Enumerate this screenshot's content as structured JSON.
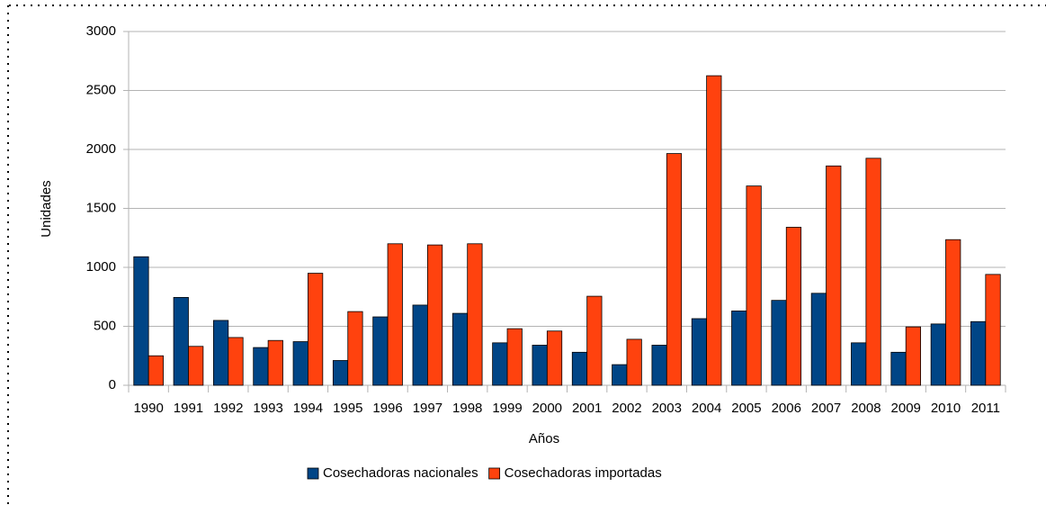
{
  "chart_data": {
    "type": "bar",
    "categories": [
      "1990",
      "1991",
      "1992",
      "1993",
      "1994",
      "1995",
      "1996",
      "1997",
      "1998",
      "1999",
      "2000",
      "2001",
      "2002",
      "2003",
      "2004",
      "2005",
      "2006",
      "2007",
      "2008",
      "2009",
      "2010",
      "2011"
    ],
    "series": [
      {
        "name": "Cosechadoras nacionales",
        "color": "#004586",
        "values": [
          1090,
          745,
          550,
          320,
          370,
          210,
          580,
          680,
          610,
          360,
          340,
          280,
          175,
          340,
          565,
          630,
          720,
          780,
          360,
          280,
          520,
          540
        ]
      },
      {
        "name": "Cosechadoras importadas",
        "color": "#ff420e",
        "values": [
          250,
          330,
          405,
          380,
          950,
          625,
          1200,
          1190,
          1200,
          480,
          460,
          755,
          390,
          1965,
          2625,
          1690,
          1340,
          1860,
          1925,
          495,
          1235,
          940
        ]
      }
    ],
    "x_label": "Años",
    "y_label": "Unidades",
    "ylim": [
      0,
      3000
    ],
    "yticks": [
      0,
      500,
      1000,
      1500,
      2000,
      2500,
      3000
    ],
    "grid": true,
    "legend": "bottom"
  }
}
